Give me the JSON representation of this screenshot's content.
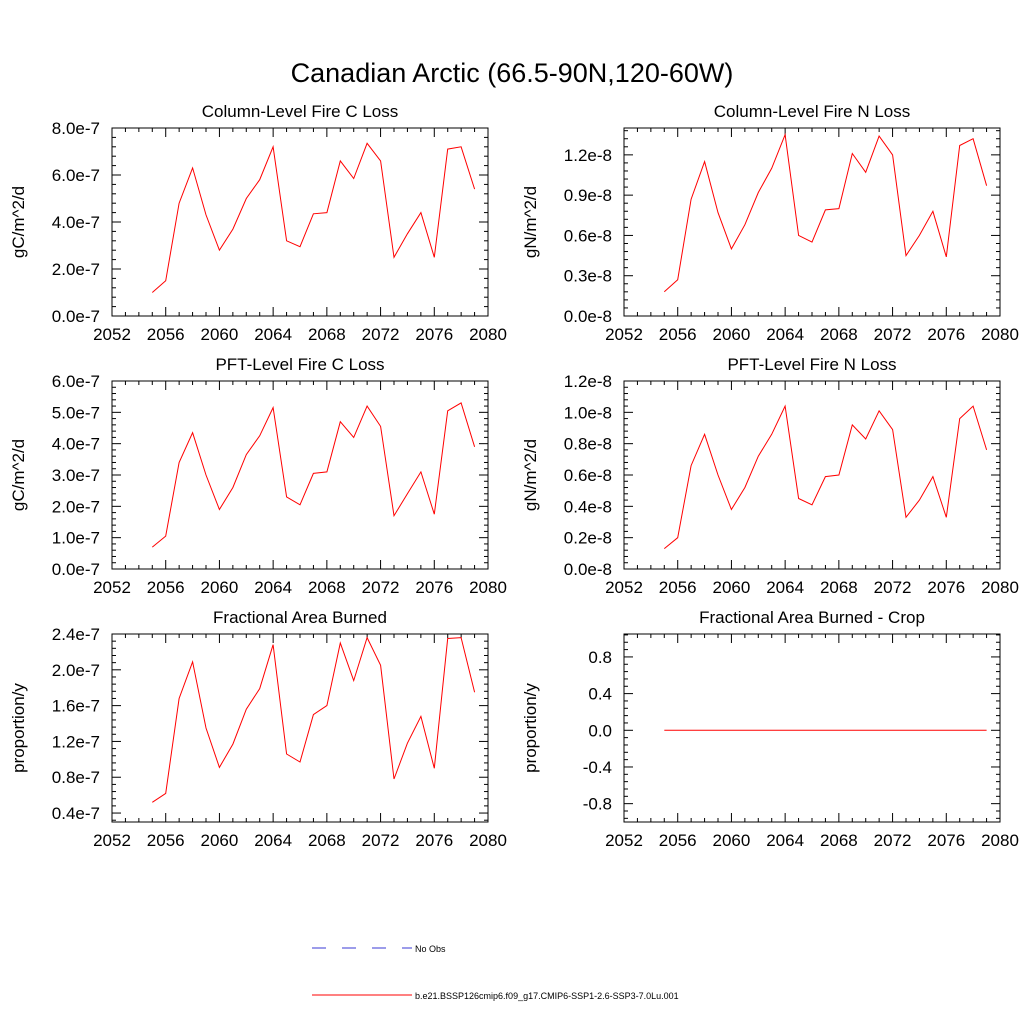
{
  "figure_title": "Canadian Arctic (66.5-90N,120-60W)",
  "colors": {
    "model": "#ff0000",
    "obs": "#3a3ad6",
    "axis": "#000000",
    "background": "#ffffff"
  },
  "legend": {
    "obs_label": "No Obs",
    "model_label": "b.e21.BSSP126cmip6.f09_g17.CMIP6-SSP1-2.6-SSP3-7.0Lu.001"
  },
  "chart_data": [
    {
      "type": "line",
      "title": "Column-Level Fire C Loss",
      "ylabel": "gC/m^2/d",
      "xlim": [
        2052,
        2080
      ],
      "xticks": [
        2052,
        2056,
        2060,
        2064,
        2068,
        2072,
        2076,
        2080
      ],
      "xtick_labels": [
        "2052",
        "2056",
        "2060",
        "2064",
        "2068",
        "2072",
        "2076",
        "2080"
      ],
      "ylim": [
        0,
        8e-07
      ],
      "yticks": [
        0,
        2e-07,
        4e-07,
        6e-07,
        8e-07
      ],
      "ytick_labels": [
        "0.0e-7",
        "2.0e-7",
        "4.0e-7",
        "6.0e-7",
        "8.0e-7"
      ],
      "x": [
        2055,
        2056,
        2057,
        2058,
        2059,
        2060,
        2061,
        2062,
        2063,
        2064,
        2065,
        2066,
        2067,
        2068,
        2069,
        2070,
        2071,
        2072,
        2073,
        2074,
        2075,
        2076,
        2077,
        2078,
        2079
      ],
      "series": [
        {
          "values": [
            1e-07,
            1.5e-07,
            4.8e-07,
            6.3e-07,
            4.3e-07,
            2.8e-07,
            3.7e-07,
            5e-07,
            5.8e-07,
            7.2e-07,
            3.2e-07,
            2.95e-07,
            4.35e-07,
            4.4e-07,
            6.6e-07,
            5.85e-07,
            7.35e-07,
            6.6e-07,
            2.5e-07,
            3.5e-07,
            4.4e-07,
            2.5e-07,
            7.1e-07,
            7.2e-07,
            5.4e-07
          ]
        }
      ]
    },
    {
      "type": "line",
      "title": "Column-Level Fire N Loss",
      "ylabel": "gN/m^2/d",
      "xlim": [
        2052,
        2080
      ],
      "xticks": [
        2052,
        2056,
        2060,
        2064,
        2068,
        2072,
        2076,
        2080
      ],
      "xtick_labels": [
        "2052",
        "2056",
        "2060",
        "2064",
        "2068",
        "2072",
        "2076",
        "2080"
      ],
      "ylim": [
        0,
        1.4e-08
      ],
      "yticks": [
        0,
        3e-09,
        6e-09,
        9e-09,
        1.2e-08
      ],
      "ytick_labels": [
        "0.0e-8",
        "0.3e-8",
        "0.6e-8",
        "0.9e-8",
        "1.2e-8"
      ],
      "x": [
        2055,
        2056,
        2057,
        2058,
        2059,
        2060,
        2061,
        2062,
        2063,
        2064,
        2065,
        2066,
        2067,
        2068,
        2069,
        2070,
        2071,
        2072,
        2073,
        2074,
        2075,
        2076,
        2077,
        2078,
        2079
      ],
      "series": [
        {
          "values": [
            1.8e-09,
            2.7e-09,
            8.7e-09,
            1.15e-08,
            7.7e-09,
            5e-09,
            6.8e-09,
            9.2e-09,
            1.1e-08,
            1.35e-08,
            6e-09,
            5.5e-09,
            7.9e-09,
            8e-09,
            1.21e-08,
            1.07e-08,
            1.34e-08,
            1.2e-08,
            4.5e-09,
            6e-09,
            7.8e-09,
            4.4e-09,
            1.27e-08,
            1.32e-08,
            9.7e-09
          ]
        }
      ]
    },
    {
      "type": "line",
      "title": "PFT-Level Fire C Loss",
      "ylabel": "gC/m^2/d",
      "xlim": [
        2052,
        2080
      ],
      "xticks": [
        2052,
        2056,
        2060,
        2064,
        2068,
        2072,
        2076,
        2080
      ],
      "xtick_labels": [
        "2052",
        "2056",
        "2060",
        "2064",
        "2068",
        "2072",
        "2076",
        "2080"
      ],
      "ylim": [
        0,
        6e-07
      ],
      "yticks": [
        0,
        1e-07,
        2e-07,
        3e-07,
        4e-07,
        5e-07,
        6e-07
      ],
      "ytick_labels": [
        "0.0e-7",
        "1.0e-7",
        "2.0e-7",
        "3.0e-7",
        "4.0e-7",
        "5.0e-7",
        "6.0e-7"
      ],
      "x": [
        2055,
        2056,
        2057,
        2058,
        2059,
        2060,
        2061,
        2062,
        2063,
        2064,
        2065,
        2066,
        2067,
        2068,
        2069,
        2070,
        2071,
        2072,
        2073,
        2074,
        2075,
        2076,
        2077,
        2078,
        2079
      ],
      "series": [
        {
          "values": [
            7e-08,
            1.05e-07,
            3.4e-07,
            4.35e-07,
            3e-07,
            1.9e-07,
            2.6e-07,
            3.65e-07,
            4.25e-07,
            5.15e-07,
            2.3e-07,
            2.05e-07,
            3.05e-07,
            3.1e-07,
            4.7e-07,
            4.2e-07,
            5.2e-07,
            4.55e-07,
            1.7e-07,
            2.4e-07,
            3.1e-07,
            1.75e-07,
            5.05e-07,
            5.3e-07,
            3.9e-07
          ]
        }
      ]
    },
    {
      "type": "line",
      "title": "PFT-Level Fire N Loss",
      "ylabel": "gN/m^2/d",
      "xlim": [
        2052,
        2080
      ],
      "xticks": [
        2052,
        2056,
        2060,
        2064,
        2068,
        2072,
        2076,
        2080
      ],
      "xtick_labels": [
        "2052",
        "2056",
        "2060",
        "2064",
        "2068",
        "2072",
        "2076",
        "2080"
      ],
      "ylim": [
        0,
        1.2e-08
      ],
      "yticks": [
        0,
        2e-09,
        4e-09,
        6e-09,
        8e-09,
        1e-08,
        1.2e-08
      ],
      "ytick_labels": [
        "0.0e-8",
        "0.2e-8",
        "0.4e-8",
        "0.6e-8",
        "0.8e-8",
        "1.0e-8",
        "1.2e-8"
      ],
      "x": [
        2055,
        2056,
        2057,
        2058,
        2059,
        2060,
        2061,
        2062,
        2063,
        2064,
        2065,
        2066,
        2067,
        2068,
        2069,
        2070,
        2071,
        2072,
        2073,
        2074,
        2075,
        2076,
        2077,
        2078,
        2079
      ],
      "series": [
        {
          "values": [
            1.3e-09,
            2e-09,
            6.6e-09,
            8.6e-09,
            6e-09,
            3.8e-09,
            5.2e-09,
            7.2e-09,
            8.6e-09,
            1.04e-08,
            4.5e-09,
            4.1e-09,
            5.9e-09,
            6e-09,
            9.2e-09,
            8.3e-09,
            1.01e-08,
            8.9e-09,
            3.3e-09,
            4.4e-09,
            5.9e-09,
            3.3e-09,
            9.6e-09,
            1.04e-08,
            7.6e-09
          ]
        }
      ]
    },
    {
      "type": "line",
      "title": "Fractional Area Burned",
      "ylabel": "proportion/y",
      "xlim": [
        2052,
        2080
      ],
      "xticks": [
        2052,
        2056,
        2060,
        2064,
        2068,
        2072,
        2076,
        2080
      ],
      "xtick_labels": [
        "2052",
        "2056",
        "2060",
        "2064",
        "2068",
        "2072",
        "2076",
        "2080"
      ],
      "ylim": [
        3e-08,
        2.4e-07
      ],
      "yticks": [
        4e-08,
        8e-08,
        1.2e-07,
        1.6e-07,
        2e-07,
        2.4e-07
      ],
      "ytick_labels": [
        "0.4e-7",
        "0.8e-7",
        "1.2e-7",
        "1.6e-7",
        "2.0e-7",
        "2.4e-7"
      ],
      "x": [
        2055,
        2056,
        2057,
        2058,
        2059,
        2060,
        2061,
        2062,
        2063,
        2064,
        2065,
        2066,
        2067,
        2068,
        2069,
        2070,
        2071,
        2072,
        2073,
        2074,
        2075,
        2076,
        2077,
        2078,
        2079
      ],
      "series": [
        {
          "values": [
            5.2e-08,
            6.2e-08,
            1.68e-07,
            2.09e-07,
            1.35e-07,
            9.1e-08,
            1.17e-07,
            1.56e-07,
            1.79e-07,
            2.28e-07,
            1.06e-07,
            9.7e-08,
            1.5e-07,
            1.6e-07,
            2.3e-07,
            1.88e-07,
            2.36e-07,
            2.05e-07,
            7.8e-08,
            1.18e-07,
            1.48e-07,
            9e-08,
            2.35e-07,
            2.36e-07,
            1.75e-07
          ]
        }
      ]
    },
    {
      "type": "line",
      "title": "Fractional Area Burned - Crop",
      "ylabel": "proportion/y",
      "xlim": [
        2052,
        2080
      ],
      "xticks": [
        2052,
        2056,
        2060,
        2064,
        2068,
        2072,
        2076,
        2080
      ],
      "xtick_labels": [
        "2052",
        "2056",
        "2060",
        "2064",
        "2068",
        "2072",
        "2076",
        "2080"
      ],
      "ylim": [
        -1.0,
        1.05
      ],
      "yticks": [
        -0.8,
        -0.4,
        0.0,
        0.4,
        0.8
      ],
      "ytick_labels": [
        "-0.8",
        "-0.4",
        "0.0",
        "0.4",
        "0.8"
      ],
      "x": [
        2055,
        2056,
        2057,
        2058,
        2059,
        2060,
        2061,
        2062,
        2063,
        2064,
        2065,
        2066,
        2067,
        2068,
        2069,
        2070,
        2071,
        2072,
        2073,
        2074,
        2075,
        2076,
        2077,
        2078,
        2079
      ],
      "series": [
        {
          "values": [
            0,
            0,
            0,
            0,
            0,
            0,
            0,
            0,
            0,
            0,
            0,
            0,
            0,
            0,
            0,
            0,
            0,
            0,
            0,
            0,
            0,
            0,
            0,
            0,
            0
          ]
        }
      ]
    }
  ]
}
